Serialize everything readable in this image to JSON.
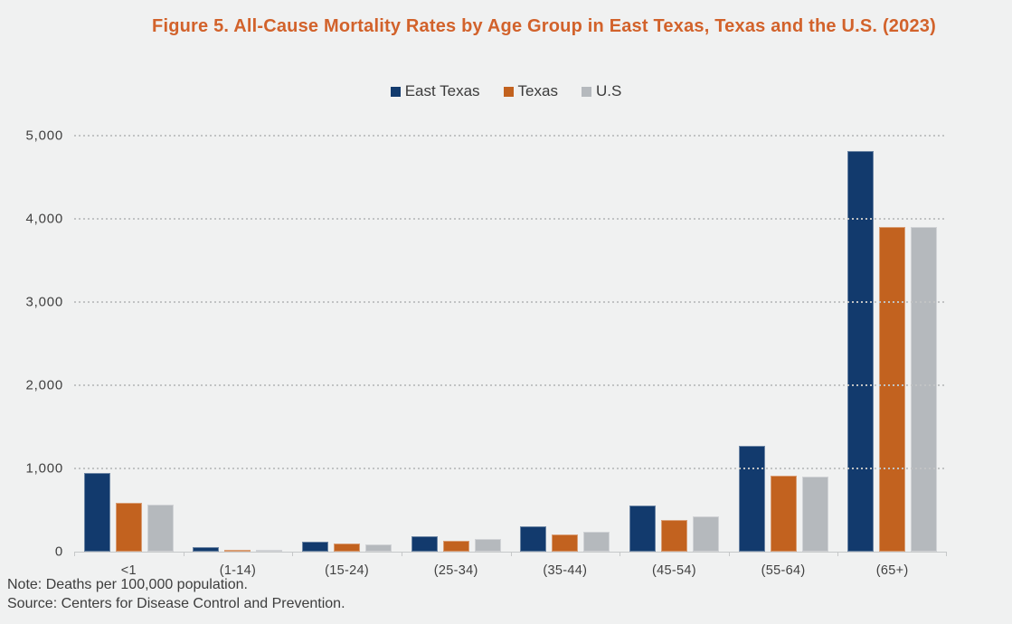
{
  "figure": {
    "title": "Figure 5. All-Cause Mortality Rates by Age Group in East Texas, Texas and the U.S. (2023)",
    "title_color": "#d2622b",
    "background_color": "#f0f1f1",
    "note": "Note: Deaths per 100,000 population.",
    "source": "Source: Centers for Disease Control and Prevention."
  },
  "chart_data": {
    "type": "bar",
    "title": "Figure 5. All-Cause Mortality Rates by Age Group in East Texas, Texas and the U.S. (2023)",
    "unit": "Deaths per 100,000 population",
    "categories": [
      "<1",
      "(1-14)",
      "(15-24)",
      "(25-34)",
      "(35-44)",
      "(45-54)",
      "(55-64)",
      "(65+)"
    ],
    "series": [
      {
        "name": "East Texas",
        "color": "#123a6d",
        "values": [
          950,
          50,
          120,
          185,
          300,
          550,
          1270,
          4820
        ]
      },
      {
        "name": "Texas",
        "color": "#c2621f",
        "values": [
          590,
          22,
          93,
          135,
          212,
          383,
          910,
          3900
        ]
      },
      {
        "name": "U.S",
        "color": "#b5b9bd",
        "values": [
          560,
          18,
          83,
          153,
          240,
          419,
          903,
          3900
        ]
      }
    ],
    "ylim": [
      0,
      5000
    ],
    "ytick_values": [
      0,
      1000,
      2000,
      3000,
      4000,
      5000
    ],
    "ytick_labels": [
      "0",
      "1,000",
      "2,000",
      "3,000",
      "4,000",
      "5,000"
    ],
    "grid": "horizontal-dotted",
    "legend_position": "top-center"
  }
}
